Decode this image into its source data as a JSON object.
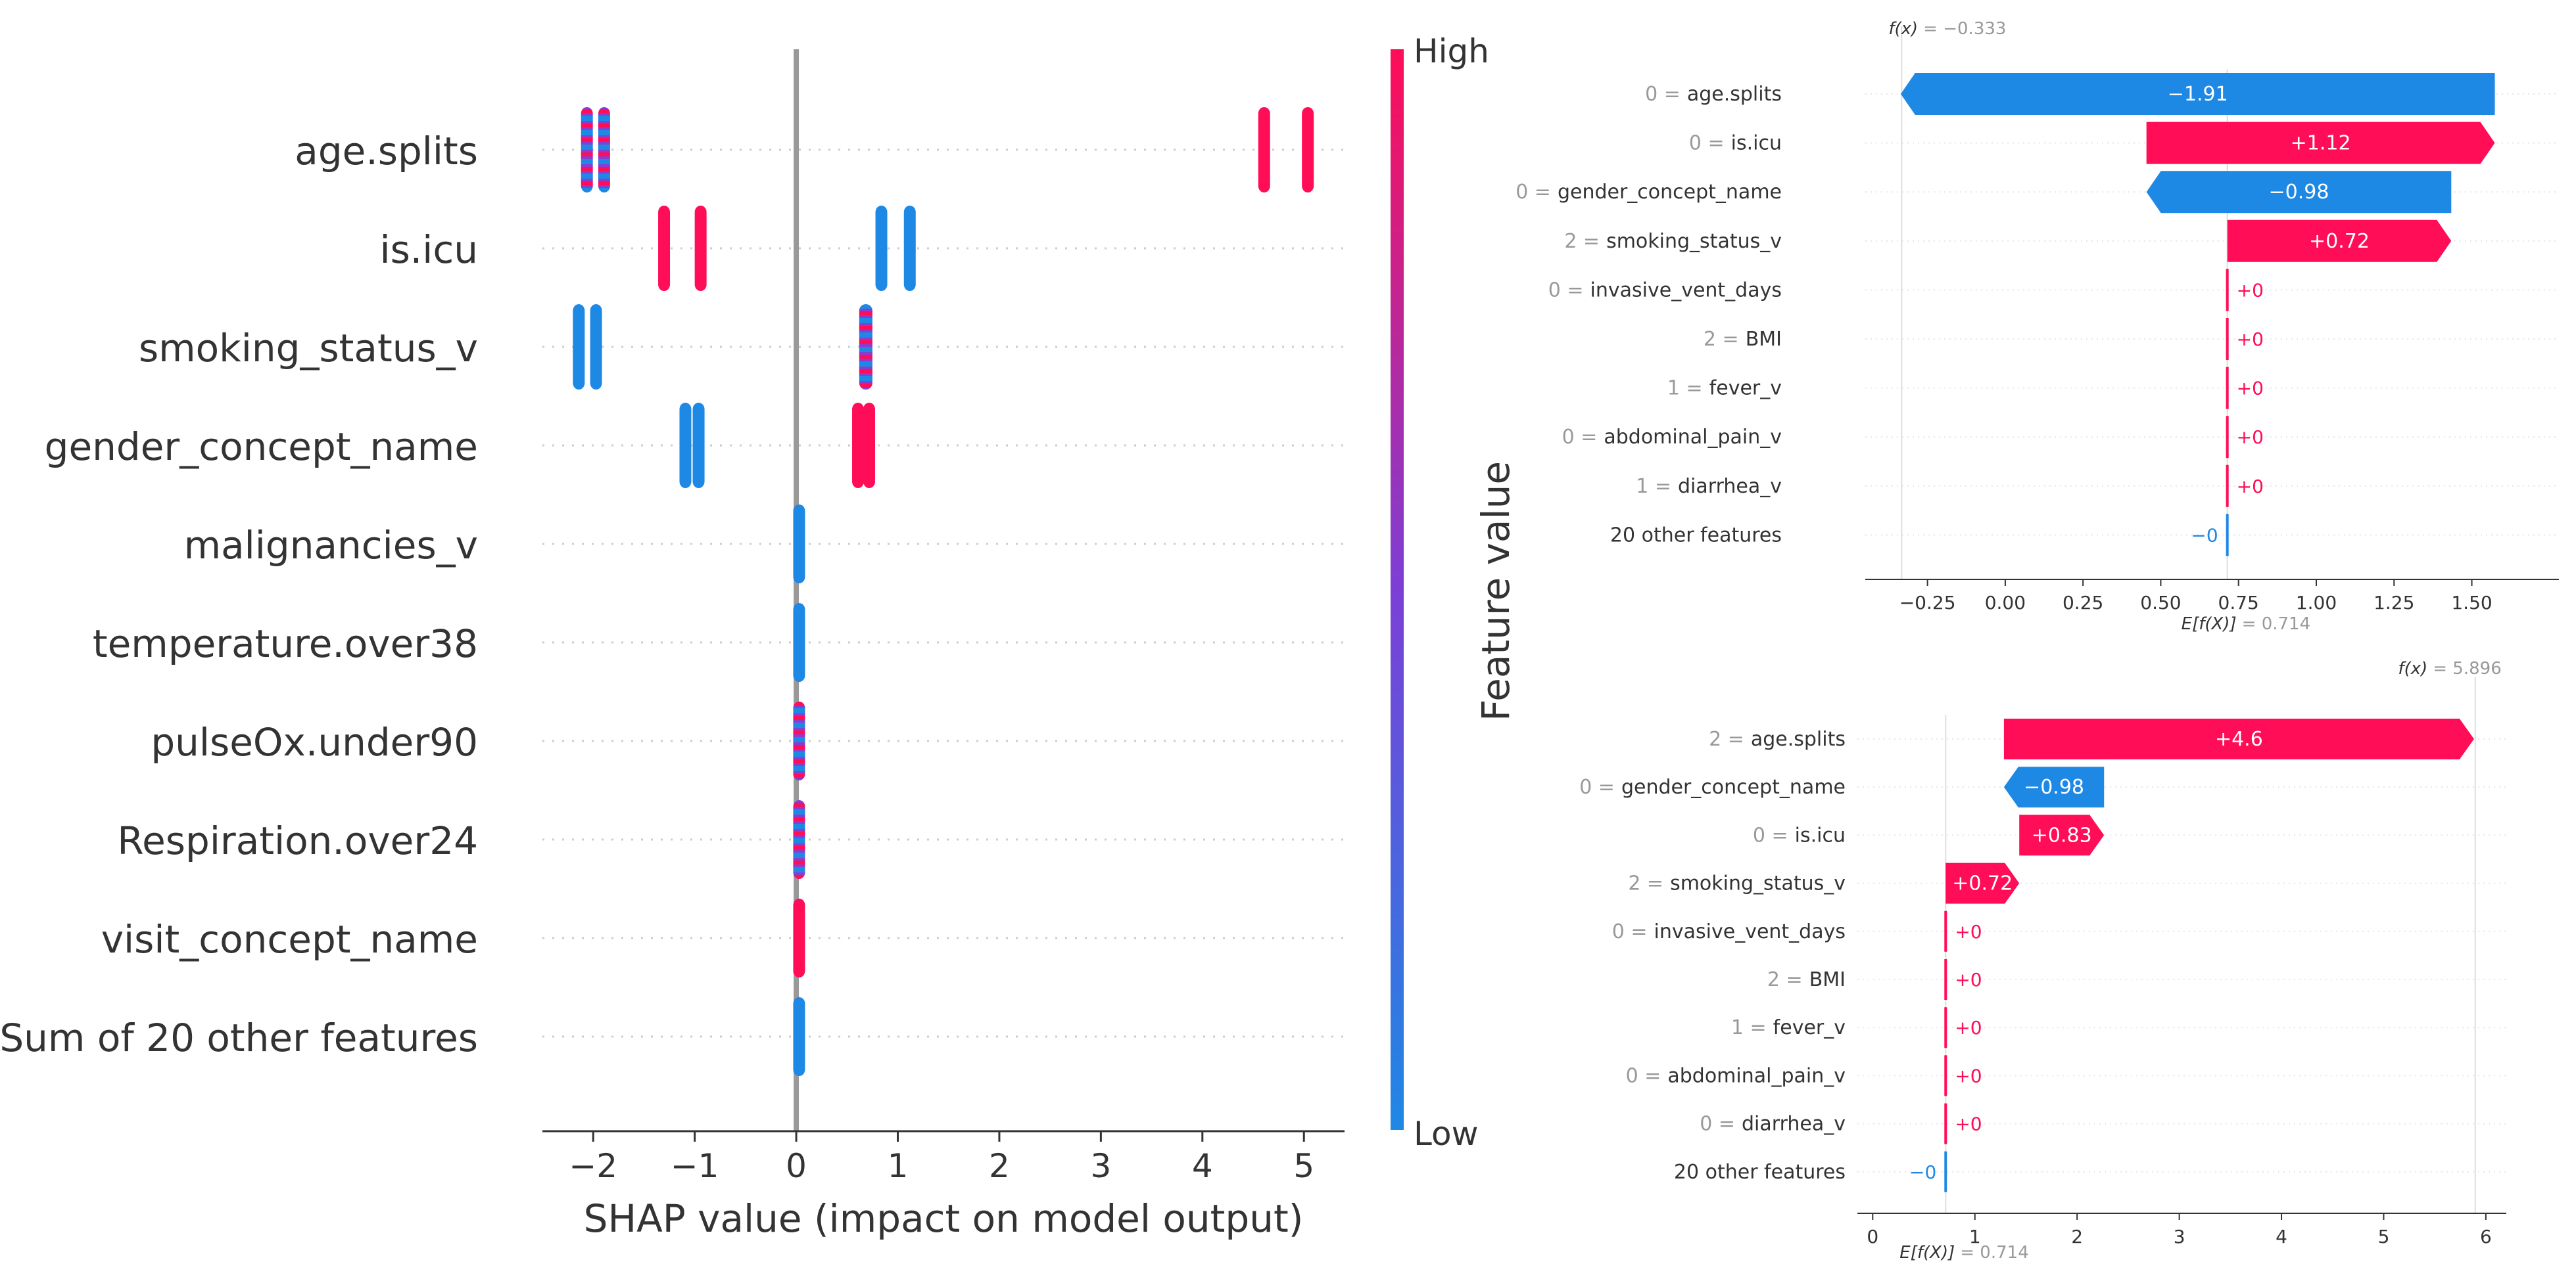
{
  "colors": {
    "high": "#ff0d57",
    "low": "#1e88e5",
    "axis": "#333333",
    "grid": "#cccccc",
    "zero_line": "#999999",
    "muted": "#999999"
  },
  "chart_data": [
    {
      "type": "scatter",
      "subtype": "shap-beeswarm",
      "xlabel": "SHAP value (impact on model output)",
      "xlim": [
        -2.5,
        5.4
      ],
      "xticks": [
        -2,
        -1,
        0,
        1,
        2,
        3,
        4,
        5
      ],
      "colorbar": {
        "label": "Feature value",
        "high": "High",
        "low": "Low"
      },
      "features": [
        {
          "name": "age.splits",
          "clusters": [
            {
              "from": -2.12,
              "to": -2.05,
              "color": "mixed"
            },
            {
              "from": -1.95,
              "to": -1.88,
              "color": "mixed"
            },
            {
              "from": 4.55,
              "to": 4.62,
              "color": "high"
            },
            {
              "from": 4.98,
              "to": 5.06,
              "color": "high"
            }
          ]
        },
        {
          "name": "is.icu",
          "clusters": [
            {
              "from": -1.36,
              "to": -1.28,
              "color": "high"
            },
            {
              "from": -1.0,
              "to": -0.93,
              "color": "high"
            },
            {
              "from": 0.78,
              "to": 0.86,
              "color": "low"
            },
            {
              "from": 1.06,
              "to": 1.14,
              "color": "low"
            }
          ]
        },
        {
          "name": "smoking_status_v",
          "clusters": [
            {
              "from": -2.2,
              "to": -2.12,
              "color": "low"
            },
            {
              "from": -2.03,
              "to": -1.95,
              "color": "low"
            },
            {
              "from": 0.62,
              "to": 0.75,
              "color": "mixed"
            }
          ]
        },
        {
          "name": "gender_concept_name",
          "clusters": [
            {
              "from": -1.15,
              "to": -1.08,
              "color": "low"
            },
            {
              "from": -1.02,
              "to": -0.93,
              "color": "low"
            },
            {
              "from": 0.55,
              "to": 0.65,
              "color": "high"
            },
            {
              "from": 0.66,
              "to": 0.74,
              "color": "high"
            }
          ]
        },
        {
          "name": "malignancies_v",
          "clusters": [
            {
              "from": -0.03,
              "to": 0.03,
              "color": "low"
            }
          ]
        },
        {
          "name": "temperature.over38",
          "clusters": [
            {
              "from": -0.03,
              "to": 0.03,
              "color": "low"
            }
          ]
        },
        {
          "name": "pulseOx.under90",
          "clusters": [
            {
              "from": -0.03,
              "to": 0.03,
              "color": "mixed"
            }
          ]
        },
        {
          "name": "Respiration.over24",
          "clusters": [
            {
              "from": -0.03,
              "to": 0.03,
              "color": "mixed"
            }
          ]
        },
        {
          "name": "visit_concept_name",
          "clusters": [
            {
              "from": -0.03,
              "to": 0.03,
              "color": "high"
            }
          ]
        },
        {
          "name": "Sum of 20 other features",
          "clusters": [
            {
              "from": -0.03,
              "to": 0.03,
              "color": "low"
            }
          ]
        }
      ]
    },
    {
      "type": "bar",
      "subtype": "shap-waterfall",
      "fx_label": "f(x)",
      "fx_value": "= −0.333",
      "efx_label": "E[f(X)]",
      "efx_value": "= 0.714",
      "base_value": 0.714,
      "final_value": -0.333,
      "xlim": [
        -0.45,
        1.78
      ],
      "xticks": [
        -0.25,
        0.0,
        0.25,
        0.5,
        0.75,
        1.0,
        1.25,
        1.5
      ],
      "xtick_labels": [
        "−0.25",
        "0.00",
        "0.25",
        "0.50",
        "0.75",
        "1.00",
        "1.25",
        "1.50"
      ],
      "rows": [
        {
          "value_label": "0 =",
          "feature": "age.splits",
          "shap": -1.91,
          "text": "−1.91"
        },
        {
          "value_label": "0 =",
          "feature": "is.icu",
          "shap": 1.12,
          "text": "+1.12"
        },
        {
          "value_label": "0 =",
          "feature": "gender_concept_name",
          "shap": -0.98,
          "text": "−0.98"
        },
        {
          "value_label": "2 =",
          "feature": "smoking_status_v",
          "shap": 0.72,
          "text": "+0.72"
        },
        {
          "value_label": "0 =",
          "feature": "invasive_vent_days",
          "shap": 0,
          "text": "+0"
        },
        {
          "value_label": "2 =",
          "feature": "BMI",
          "shap": 0,
          "text": "+0"
        },
        {
          "value_label": "1 =",
          "feature": "fever_v",
          "shap": 0,
          "text": "+0"
        },
        {
          "value_label": "0 =",
          "feature": "abdominal_pain_v",
          "shap": 0,
          "text": "+0"
        },
        {
          "value_label": "1 =",
          "feature": "diarrhea_v",
          "shap": 0,
          "text": "+0"
        },
        {
          "value_label": "",
          "feature": "20 other features",
          "shap": -0.0,
          "text": "−0"
        }
      ]
    },
    {
      "type": "bar",
      "subtype": "shap-waterfall",
      "fx_label": "f(x)",
      "fx_value": "= 5.896",
      "efx_label": "E[f(X)]",
      "efx_value": "= 0.714",
      "base_value": 0.714,
      "final_value": 5.896,
      "xlim": [
        -0.15,
        6.2
      ],
      "xticks": [
        0,
        1,
        2,
        3,
        4,
        5,
        6
      ],
      "xtick_labels": [
        "0",
        "1",
        "2",
        "3",
        "4",
        "5",
        "6"
      ],
      "rows": [
        {
          "value_label": "2 =",
          "feature": "age.splits",
          "shap": 4.6,
          "text": "+4.6"
        },
        {
          "value_label": "0 =",
          "feature": "gender_concept_name",
          "shap": -0.98,
          "text": "−0.98"
        },
        {
          "value_label": "0 =",
          "feature": "is.icu",
          "shap": 0.83,
          "text": "+0.83"
        },
        {
          "value_label": "2 =",
          "feature": "smoking_status_v",
          "shap": 0.72,
          "text": "+0.72"
        },
        {
          "value_label": "0 =",
          "feature": "invasive_vent_days",
          "shap": 0,
          "text": "+0"
        },
        {
          "value_label": "2 =",
          "feature": "BMI",
          "shap": 0,
          "text": "+0"
        },
        {
          "value_label": "1 =",
          "feature": "fever_v",
          "shap": 0,
          "text": "+0"
        },
        {
          "value_label": "0 =",
          "feature": "abdominal_pain_v",
          "shap": 0,
          "text": "+0"
        },
        {
          "value_label": "0 =",
          "feature": "diarrhea_v",
          "shap": 0,
          "text": "+0"
        },
        {
          "value_label": "",
          "feature": "20 other features",
          "shap": -0.0,
          "text": "−0"
        }
      ]
    }
  ]
}
